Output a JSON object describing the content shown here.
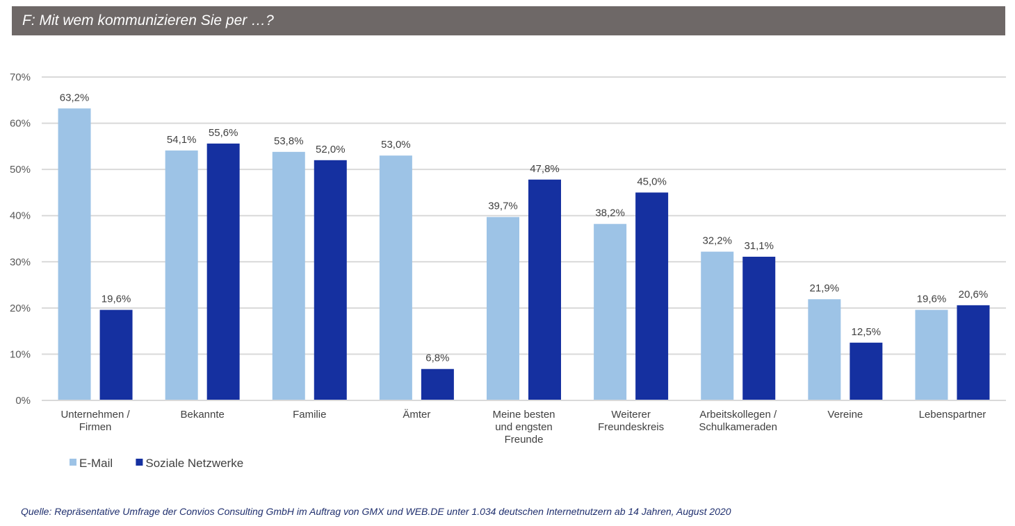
{
  "header": {
    "title": "F: Mit wem kommunizieren Sie per …?"
  },
  "chart_data": {
    "type": "bar",
    "title": "F: Mit wem kommunizieren Sie per …?",
    "xlabel": "",
    "ylabel": "",
    "ylim": [
      0,
      70
    ],
    "yticks": [
      0,
      10,
      20,
      30,
      40,
      50,
      60,
      70
    ],
    "ytick_labels": [
      "0%",
      "10%",
      "20%",
      "30%",
      "40%",
      "50%",
      "60%",
      "70%"
    ],
    "grid": true,
    "legend_position": "bottom-left",
    "categories": [
      [
        "Unternehmen /",
        "Firmen"
      ],
      [
        "Bekannte"
      ],
      [
        "Familie"
      ],
      [
        "Ämter"
      ],
      [
        "Meine besten",
        "und engsten",
        "Freunde"
      ],
      [
        "Weiterer",
        "Freundeskreis"
      ],
      [
        "Arbeitskollegen /",
        "Schulkameraden"
      ],
      [
        "Vereine"
      ],
      [
        "Lebenspartner"
      ]
    ],
    "series": [
      {
        "name": "E-Mail",
        "color": "#9dc3e6",
        "values": [
          63.2,
          54.1,
          53.8,
          53.0,
          39.7,
          38.2,
          32.2,
          21.9,
          19.6
        ],
        "labels": [
          "63,2%",
          "54,1%",
          "53,8%",
          "53,0%",
          "39,7%",
          "38,2%",
          "32,2%",
          "21,9%",
          "19,6%"
        ]
      },
      {
        "name": "Soziale Netzwerke",
        "color": "#1530a0",
        "values": [
          19.6,
          55.6,
          52.0,
          6.8,
          47.8,
          45.0,
          31.1,
          12.5,
          20.6
        ],
        "labels": [
          "19,6%",
          "55,6%",
          "52,0%",
          "6,8%",
          "47,8%",
          "45,0%",
          "31,1%",
          "12,5%",
          "20,6%"
        ]
      }
    ]
  },
  "footer": {
    "source": "Quelle: Repräsentative Umfrage der Convios Consulting GmbH im Auftrag von GMX und WEB.DE unter 1.034 deutschen Internetnutzern ab 14 Jahren, August 2020"
  }
}
